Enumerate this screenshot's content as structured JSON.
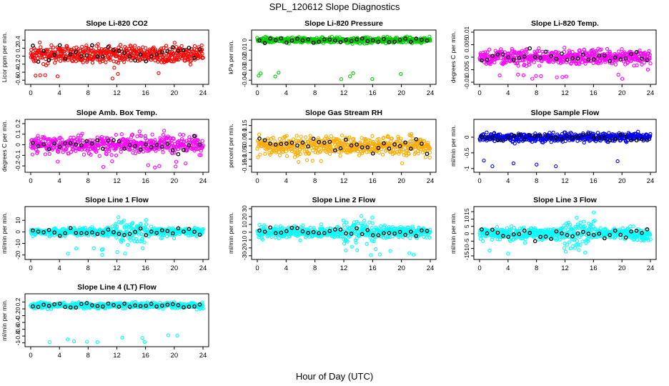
{
  "figure": {
    "title": "SPL_120612  Slope Diagnostics",
    "xlabel": "Hour of Day (UTC)"
  },
  "chart_data": [
    {
      "type": "scatter",
      "title": "Slope Li-820 CO2",
      "ylabel": "Licor ppm per min.",
      "xlim": [
        0,
        24
      ],
      "ylim": [
        -0.65,
        0.6
      ],
      "yticks": [
        -0.6,
        -0.4,
        -0.2,
        0.0,
        0.2,
        0.4
      ],
      "xticks": [
        0,
        4,
        8,
        12,
        16,
        20,
        24
      ],
      "color": "#ff0000",
      "center": 0.05,
      "spread": 0.16,
      "series": [
        {
          "values_summary": "~1000 points, mostly between -0.3 and 0.4, outliers to 0.55 and -0.6"
        }
      ]
    },
    {
      "type": "scatter",
      "title": "Slope Li-820 Pressure",
      "ylabel": "kPa per min.",
      "xlim": [
        0,
        24
      ],
      "ylim": [
        -0.042,
        0.008
      ],
      "yticks": [
        -0.04,
        -0.03,
        -0.02,
        -0.01,
        0.0
      ],
      "xticks": [
        0,
        4,
        8,
        12,
        16,
        20,
        24
      ],
      "color": "#00cc00",
      "center": 0.0,
      "spread": 0.002,
      "series": [
        {
          "values_summary": "dense band near 0, outliers down to -0.04"
        }
      ]
    },
    {
      "type": "scatter",
      "title": "Slope Li-820 Temp.",
      "ylabel": "degrees C per min.",
      "xlim": [
        0,
        24
      ],
      "ylim": [
        -0.01,
        0.01
      ],
      "yticks": [
        -0.01,
        -0.005,
        0.0,
        0.005,
        0.01
      ],
      "xticks": [
        0,
        4,
        8,
        12,
        16,
        20,
        24
      ],
      "color": "#ff00ff",
      "center": 0.0,
      "spread": 0.0022,
      "series": [
        {
          "values_summary": "band between -0.005 and 0.005"
        }
      ]
    },
    {
      "type": "scatter",
      "title": "Slope Amb. Box Temp.",
      "ylabel": "degrees C per min.",
      "xlim": [
        0,
        24
      ],
      "ylim": [
        -0.24,
        0.22
      ],
      "yticks": [
        -0.2,
        -0.1,
        0.0,
        0.1,
        0.2
      ],
      "xticks": [
        0,
        4,
        8,
        12,
        16,
        20,
        24
      ],
      "color": "#ff00ff",
      "center": 0.0,
      "spread": 0.06,
      "series": [
        {
          "values_summary": "band between -0.2 and 0.2"
        }
      ]
    },
    {
      "type": "scatter",
      "title": "Slope Gas Stream RH",
      "ylabel": "percent per min.",
      "xlim": [
        0,
        24
      ],
      "ylim": [
        -0.18,
        0.18
      ],
      "yticks": [
        -0.15,
        -0.1,
        -0.05,
        0.0,
        0.05,
        0.1,
        0.15
      ],
      "xticks": [
        0,
        4,
        8,
        12,
        16,
        20,
        24
      ],
      "color": "#ffaa00",
      "center": 0.0,
      "spread": 0.05,
      "series": [
        {
          "values_summary": "dense band between -0.15 and 0.15"
        }
      ]
    },
    {
      "type": "scatter",
      "title": "Slope Sample Flow",
      "ylabel": "ml/min per min.",
      "xlim": [
        0,
        24
      ],
      "ylim": [
        -1.05,
        0.5
      ],
      "yticks": [
        -1.0,
        -0.5,
        0.0
      ],
      "xticks": [
        0,
        4,
        8,
        12,
        16,
        20,
        24
      ],
      "color": "#0000ee",
      "center": 0.0,
      "spread": 0.1,
      "series": [
        {
          "values_summary": "band near 0, outliers to -1.0 and 0.4"
        }
      ]
    },
    {
      "type": "scatter",
      "title": "Slope Line 1 Flow",
      "ylabel": "ml/min per min.",
      "xlim": [
        0,
        24
      ],
      "ylim": [
        -22,
        20
      ],
      "yticks": [
        -20,
        -10,
        0,
        10
      ],
      "xticks": [
        0,
        4,
        8,
        12,
        16,
        20,
        24
      ],
      "color": "#00ffff",
      "center": 0.0,
      "spread": 2.5,
      "series": [
        {
          "values_summary": "flat near 0, spread widens between 12 and 16 h"
        }
      ]
    },
    {
      "type": "scatter",
      "title": "Slope Line 2 Flow",
      "ylabel": "ml/min per min.",
      "xlim": [
        0,
        24
      ],
      "ylim": [
        -32,
        30
      ],
      "yticks": [
        -30,
        -20,
        -10,
        0,
        10,
        20,
        30
      ],
      "xticks": [
        0,
        4,
        8,
        12,
        16,
        20,
        24
      ],
      "color": "#00ffff",
      "center": 0.0,
      "spread": 5,
      "series": [
        {
          "values_summary": "near 0, spread widens between 12 and 16 h"
        }
      ]
    },
    {
      "type": "scatter",
      "title": "Slope Line 3 Flow",
      "ylabel": "ml/min per min.",
      "xlim": [
        0,
        24
      ],
      "ylim": [
        -16,
        17
      ],
      "yticks": [
        -15,
        -10,
        -5,
        0,
        5,
        10,
        15
      ],
      "xticks": [
        0,
        4,
        8,
        12,
        16,
        20,
        24
      ],
      "color": "#00ffff",
      "center": 0.0,
      "spread": 3,
      "series": [
        {
          "values_summary": "near 0, spread widens between 12 and 16 h"
        }
      ]
    },
    {
      "type": "scatter",
      "title": "Slope Line 4 (LT) Flow",
      "ylabel": "ml/min per min.",
      "xlim": [
        0,
        24
      ],
      "ylim": [
        -1.05,
        0.38
      ],
      "yticks": [
        -1.0,
        -0.8,
        -0.6,
        -0.4,
        -0.2,
        0.0,
        0.2
      ],
      "xticks": [
        0,
        4,
        8,
        12,
        16,
        20,
        24
      ],
      "color": "#00ffff",
      "center": 0.1,
      "spread": 0.06,
      "series": [
        {
          "values_summary": "band near 0.1, outliers to -0.6 and -1.0"
        }
      ]
    }
  ]
}
